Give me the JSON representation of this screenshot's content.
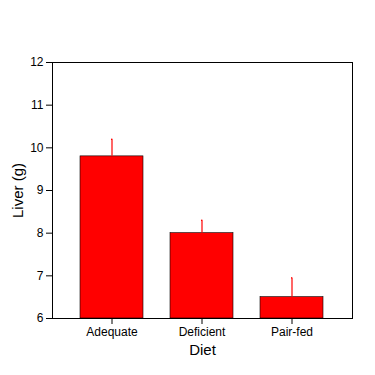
{
  "chart_data": {
    "type": "bar",
    "x_label": "Diet",
    "y_label": "Liver (g)",
    "categories": [
      "Adequate",
      "Deficient",
      "Pair-fed"
    ],
    "values": [
      9.8,
      8.0,
      6.5
    ],
    "errors": [
      0.4,
      0.3,
      0.45
    ],
    "color": "#ff0000",
    "ylim": [
      6,
      12
    ],
    "yticks": [
      6,
      7,
      8,
      9,
      10,
      11,
      12
    ],
    "grid": false
  }
}
